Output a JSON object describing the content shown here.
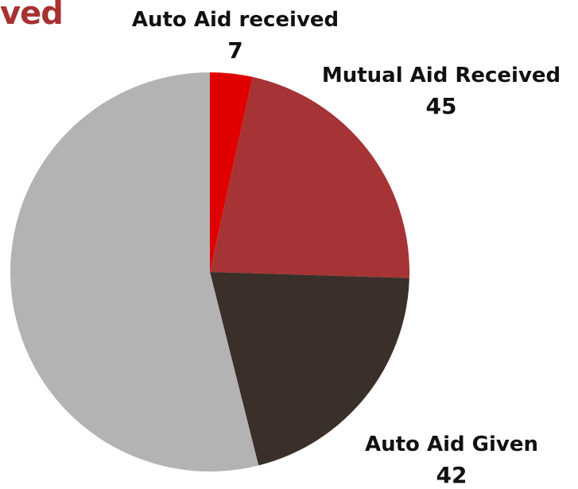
{
  "title_fragment": "ved",
  "chart_data": {
    "type": "pie",
    "slices": [
      {
        "label": "Auto Aid received",
        "value": 7,
        "color": "#e00000",
        "labeled": true
      },
      {
        "label": "Mutual Aid Received",
        "value": 45,
        "color": "#a63335",
        "labeled": true
      },
      {
        "label": "Auto Aid Given",
        "value": 42,
        "color": "#3b2f2a",
        "labeled": true
      },
      {
        "label": "",
        "value": 110,
        "color": "#b3b3b3",
        "labeled": false
      }
    ],
    "start_angle_deg": 0,
    "direction": "clockwise"
  }
}
